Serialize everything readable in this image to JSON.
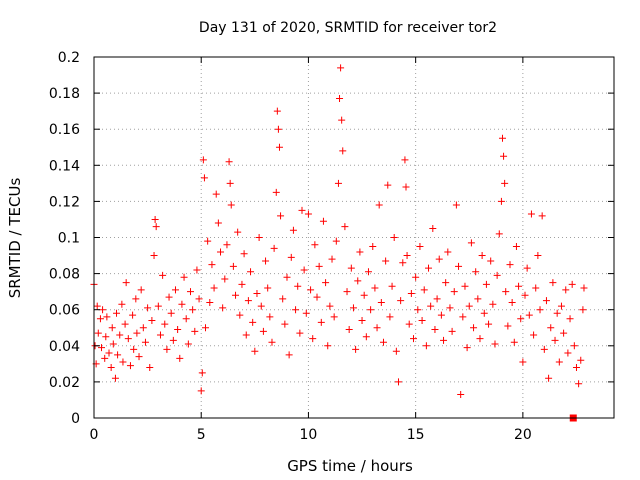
{
  "chart_data": {
    "type": "scatter",
    "title": "Day 131 of 2020, SRMTID for receiver tor2",
    "xlabel": "GPS time / hours",
    "ylabel": "SRMTID / TECUs",
    "xlim": [
      0,
      24.25
    ],
    "ylim": [
      0,
      0.2
    ],
    "xticks": [
      0,
      5,
      10,
      15,
      20
    ],
    "xtick_labels": [
      "0",
      "5",
      "10",
      "15",
      "20"
    ],
    "yticks": [
      0,
      0.02,
      0.04,
      0.06,
      0.08,
      0.1,
      0.12,
      0.14,
      0.16,
      0.18,
      0.2
    ],
    "ytick_labels": [
      "0",
      "0.02",
      "0.04",
      "0.06",
      "0.08",
      "0.1",
      "0.12",
      "0.14",
      "0.16",
      "0.18",
      "0.2"
    ],
    "grid": true,
    "marker": "plus",
    "color": "#ff0000",
    "square_marker": {
      "x": 22.35,
      "y": 0.0
    },
    "series": [
      {
        "name": "SRMTID",
        "points": [
          [
            0.0,
            0.074
          ],
          [
            0.05,
            0.04
          ],
          [
            0.1,
            0.03
          ],
          [
            0.15,
            0.062
          ],
          [
            0.2,
            0.047
          ],
          [
            0.3,
            0.055
          ],
          [
            0.35,
            0.039
          ],
          [
            0.4,
            0.06
          ],
          [
            0.5,
            0.033
          ],
          [
            0.55,
            0.045
          ],
          [
            0.6,
            0.056
          ],
          [
            0.7,
            0.036
          ],
          [
            0.8,
            0.028
          ],
          [
            0.85,
            0.05
          ],
          [
            0.9,
            0.041
          ],
          [
            1.0,
            0.022
          ],
          [
            1.05,
            0.058
          ],
          [
            1.1,
            0.035
          ],
          [
            1.2,
            0.046
          ],
          [
            1.3,
            0.063
          ],
          [
            1.35,
            0.031
          ],
          [
            1.45,
            0.052
          ],
          [
            1.5,
            0.075
          ],
          [
            1.6,
            0.044
          ],
          [
            1.7,
            0.029
          ],
          [
            1.8,
            0.057
          ],
          [
            1.85,
            0.038
          ],
          [
            1.95,
            0.066
          ],
          [
            2.0,
            0.047
          ],
          [
            2.1,
            0.034
          ],
          [
            2.2,
            0.071
          ],
          [
            2.3,
            0.05
          ],
          [
            2.4,
            0.042
          ],
          [
            2.5,
            0.061
          ],
          [
            2.6,
            0.028
          ],
          [
            2.7,
            0.054
          ],
          [
            2.8,
            0.09
          ],
          [
            2.85,
            0.11
          ],
          [
            2.9,
            0.106
          ],
          [
            3.0,
            0.062
          ],
          [
            3.1,
            0.046
          ],
          [
            3.2,
            0.079
          ],
          [
            3.3,
            0.052
          ],
          [
            3.4,
            0.038
          ],
          [
            3.5,
            0.067
          ],
          [
            3.6,
            0.058
          ],
          [
            3.7,
            0.043
          ],
          [
            3.8,
            0.071
          ],
          [
            3.9,
            0.049
          ],
          [
            4.0,
            0.033
          ],
          [
            4.1,
            0.063
          ],
          [
            4.2,
            0.078
          ],
          [
            4.3,
            0.055
          ],
          [
            4.4,
            0.041
          ],
          [
            4.5,
            0.07
          ],
          [
            4.6,
            0.06
          ],
          [
            4.7,
            0.048
          ],
          [
            4.8,
            0.082
          ],
          [
            4.9,
            0.066
          ],
          [
            5.0,
            0.015
          ],
          [
            5.05,
            0.025
          ],
          [
            5.1,
            0.143
          ],
          [
            5.15,
            0.133
          ],
          [
            5.2,
            0.05
          ],
          [
            5.3,
            0.098
          ],
          [
            5.4,
            0.064
          ],
          [
            5.5,
            0.085
          ],
          [
            5.6,
            0.072
          ],
          [
            5.7,
            0.124
          ],
          [
            5.8,
            0.108
          ],
          [
            5.9,
            0.092
          ],
          [
            6.0,
            0.061
          ],
          [
            6.1,
            0.077
          ],
          [
            6.2,
            0.096
          ],
          [
            6.3,
            0.142
          ],
          [
            6.35,
            0.13
          ],
          [
            6.4,
            0.118
          ],
          [
            6.5,
            0.084
          ],
          [
            6.6,
            0.068
          ],
          [
            6.7,
            0.103
          ],
          [
            6.8,
            0.057
          ],
          [
            6.9,
            0.074
          ],
          [
            7.0,
            0.091
          ],
          [
            7.1,
            0.046
          ],
          [
            7.2,
            0.065
          ],
          [
            7.3,
            0.081
          ],
          [
            7.4,
            0.053
          ],
          [
            7.5,
            0.037
          ],
          [
            7.6,
            0.069
          ],
          [
            7.7,
            0.1
          ],
          [
            7.8,
            0.062
          ],
          [
            7.9,
            0.048
          ],
          [
            8.0,
            0.087
          ],
          [
            8.1,
            0.072
          ],
          [
            8.2,
            0.056
          ],
          [
            8.3,
            0.042
          ],
          [
            8.4,
            0.094
          ],
          [
            8.5,
            0.125
          ],
          [
            8.55,
            0.17
          ],
          [
            8.6,
            0.16
          ],
          [
            8.65,
            0.15
          ],
          [
            8.7,
            0.112
          ],
          [
            8.8,
            0.066
          ],
          [
            8.9,
            0.052
          ],
          [
            9.0,
            0.078
          ],
          [
            9.1,
            0.035
          ],
          [
            9.2,
            0.089
          ],
          [
            9.3,
            0.104
          ],
          [
            9.4,
            0.06
          ],
          [
            9.5,
            0.073
          ],
          [
            9.6,
            0.047
          ],
          [
            9.7,
            0.115
          ],
          [
            9.8,
            0.082
          ],
          [
            9.9,
            0.058
          ],
          [
            10.0,
            0.113
          ],
          [
            10.1,
            0.071
          ],
          [
            10.2,
            0.044
          ],
          [
            10.3,
            0.096
          ],
          [
            10.4,
            0.067
          ],
          [
            10.5,
            0.084
          ],
          [
            10.6,
            0.053
          ],
          [
            10.7,
            0.109
          ],
          [
            10.8,
            0.075
          ],
          [
            10.9,
            0.04
          ],
          [
            11.0,
            0.062
          ],
          [
            11.1,
            0.088
          ],
          [
            11.2,
            0.056
          ],
          [
            11.3,
            0.098
          ],
          [
            11.4,
            0.13
          ],
          [
            11.45,
            0.177
          ],
          [
            11.5,
            0.194
          ],
          [
            11.55,
            0.165
          ],
          [
            11.6,
            0.148
          ],
          [
            11.7,
            0.106
          ],
          [
            11.8,
            0.07
          ],
          [
            11.9,
            0.049
          ],
          [
            12.0,
            0.083
          ],
          [
            12.1,
            0.061
          ],
          [
            12.2,
            0.038
          ],
          [
            12.3,
            0.076
          ],
          [
            12.4,
            0.092
          ],
          [
            12.5,
            0.054
          ],
          [
            12.6,
            0.068
          ],
          [
            12.7,
            0.045
          ],
          [
            12.8,
            0.081
          ],
          [
            12.9,
            0.06
          ],
          [
            13.0,
            0.095
          ],
          [
            13.1,
            0.072
          ],
          [
            13.2,
            0.05
          ],
          [
            13.3,
            0.118
          ],
          [
            13.4,
            0.064
          ],
          [
            13.5,
            0.042
          ],
          [
            13.6,
            0.087
          ],
          [
            13.7,
            0.129
          ],
          [
            13.8,
            0.056
          ],
          [
            13.9,
            0.073
          ],
          [
            14.0,
            0.1
          ],
          [
            14.1,
            0.037
          ],
          [
            14.2,
            0.02
          ],
          [
            14.3,
            0.065
          ],
          [
            14.4,
            0.086
          ],
          [
            14.5,
            0.143
          ],
          [
            14.55,
            0.128
          ],
          [
            14.6,
            0.09
          ],
          [
            14.7,
            0.052
          ],
          [
            14.8,
            0.069
          ],
          [
            14.9,
            0.044
          ],
          [
            15.0,
            0.078
          ],
          [
            15.1,
            0.06
          ],
          [
            15.2,
            0.095
          ],
          [
            15.3,
            0.054
          ],
          [
            15.4,
            0.071
          ],
          [
            15.5,
            0.04
          ],
          [
            15.6,
            0.083
          ],
          [
            15.7,
            0.062
          ],
          [
            15.8,
            0.105
          ],
          [
            15.9,
            0.049
          ],
          [
            16.0,
            0.066
          ],
          [
            16.1,
            0.088
          ],
          [
            16.2,
            0.057
          ],
          [
            16.3,
            0.043
          ],
          [
            16.4,
            0.075
          ],
          [
            16.5,
            0.092
          ],
          [
            16.6,
            0.061
          ],
          [
            16.7,
            0.048
          ],
          [
            16.8,
            0.07
          ],
          [
            16.9,
            0.118
          ],
          [
            17.0,
            0.084
          ],
          [
            17.1,
            0.013
          ],
          [
            17.2,
            0.056
          ],
          [
            17.3,
            0.073
          ],
          [
            17.4,
            0.039
          ],
          [
            17.5,
            0.062
          ],
          [
            17.6,
            0.097
          ],
          [
            17.7,
            0.05
          ],
          [
            17.8,
            0.081
          ],
          [
            17.9,
            0.066
          ],
          [
            18.0,
            0.044
          ],
          [
            18.1,
            0.09
          ],
          [
            18.2,
            0.058
          ],
          [
            18.3,
            0.074
          ],
          [
            18.4,
            0.052
          ],
          [
            18.5,
            0.087
          ],
          [
            18.6,
            0.063
          ],
          [
            18.7,
            0.041
          ],
          [
            18.8,
            0.079
          ],
          [
            18.9,
            0.102
          ],
          [
            19.0,
            0.12
          ],
          [
            19.05,
            0.155
          ],
          [
            19.1,
            0.145
          ],
          [
            19.15,
            0.13
          ],
          [
            19.2,
            0.07
          ],
          [
            19.3,
            0.051
          ],
          [
            19.4,
            0.085
          ],
          [
            19.5,
            0.064
          ],
          [
            19.6,
            0.042
          ],
          [
            19.7,
            0.095
          ],
          [
            19.8,
            0.073
          ],
          [
            19.9,
            0.055
          ],
          [
            20.0,
            0.031
          ],
          [
            20.1,
            0.068
          ],
          [
            20.2,
            0.083
          ],
          [
            20.3,
            0.057
          ],
          [
            20.4,
            0.113
          ],
          [
            20.5,
            0.046
          ],
          [
            20.6,
            0.072
          ],
          [
            20.7,
            0.09
          ],
          [
            20.8,
            0.06
          ],
          [
            20.9,
            0.112
          ],
          [
            21.0,
            0.038
          ],
          [
            21.1,
            0.065
          ],
          [
            21.2,
            0.022
          ],
          [
            21.3,
            0.05
          ],
          [
            21.4,
            0.075
          ],
          [
            21.5,
            0.043
          ],
          [
            21.6,
            0.058
          ],
          [
            21.7,
            0.031
          ],
          [
            21.8,
            0.062
          ],
          [
            21.9,
            0.047
          ],
          [
            22.0,
            0.071
          ],
          [
            22.1,
            0.036
          ],
          [
            22.2,
            0.055
          ],
          [
            22.3,
            0.074
          ],
          [
            22.4,
            0.04
          ],
          [
            22.5,
            0.028
          ],
          [
            22.6,
            0.019
          ],
          [
            22.7,
            0.032
          ],
          [
            22.8,
            0.06
          ],
          [
            22.85,
            0.072
          ]
        ]
      }
    ]
  }
}
